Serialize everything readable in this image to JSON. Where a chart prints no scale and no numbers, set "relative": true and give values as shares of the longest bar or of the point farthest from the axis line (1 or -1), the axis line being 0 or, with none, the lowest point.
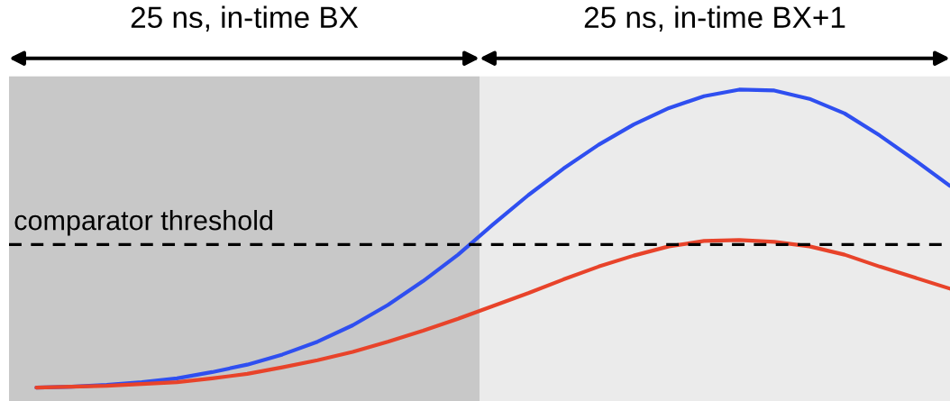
{
  "chart_data": {
    "type": "line",
    "relative": true,
    "categories": [
      null,
      null,
      null,
      null,
      null,
      null,
      null,
      null,
      null,
      null,
      null,
      null,
      null,
      null,
      null,
      null,
      null,
      null,
      null,
      null,
      null,
      null,
      null,
      null,
      null,
      null,
      null
    ],
    "series": [
      {
        "color": "#2f4ff0",
        "values": [
          0,
          0.003,
          0.009,
          0.018,
          0.031,
          0.052,
          0.077,
          0.111,
          0.154,
          0.209,
          0.277,
          0.357,
          0.446,
          0.548,
          0.646,
          0.735,
          0.815,
          0.883,
          0.938,
          0.978,
          1,
          0.997,
          0.969,
          0.92,
          0.846,
          0.763,
          0.677
        ]
      },
      {
        "color": "#e8432a",
        "values": [
          0,
          0.003,
          0.006,
          0.012,
          0.018,
          0.031,
          0.046,
          0.068,
          0.092,
          0.12,
          0.154,
          0.191,
          0.231,
          0.274,
          0.317,
          0.363,
          0.406,
          0.443,
          0.474,
          0.492,
          0.495,
          0.489,
          0.474,
          0.446,
          0.406,
          0.369,
          0.332
        ]
      }
    ],
    "annotations": [
      "25 ns, in-time BX",
      "25 ns, in-time BX+1"
    ],
    "ref_lines": [
      {
        "axis": "y",
        "value": 0.48,
        "label": "comparator threshold",
        "color": "#000000",
        "line_style": "dashed"
      }
    ],
    "grid": false,
    "legend": false
  }
}
